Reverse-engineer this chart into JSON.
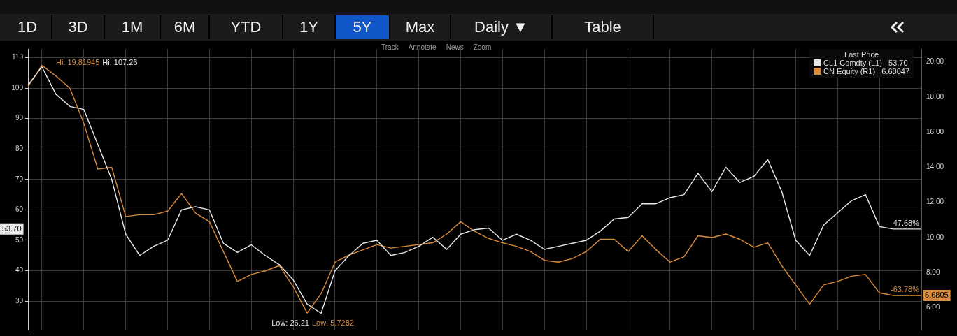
{
  "chart_data": {
    "type": "line",
    "legend_title": "Last Price",
    "legend": "top right",
    "grid": true,
    "marker": "none",
    "line_style": "solid",
    "categories": [
      null,
      null,
      null,
      null,
      null,
      null,
      null,
      null,
      null,
      null,
      null,
      null,
      null,
      null,
      null,
      null,
      null,
      null,
      null,
      null,
      null,
      null,
      null,
      null,
      null,
      null,
      null,
      null,
      null,
      null,
      null,
      null,
      null,
      null,
      null,
      null,
      null,
      null,
      null,
      null,
      null,
      null,
      null,
      null,
      null,
      null,
      null,
      null,
      null,
      null,
      null,
      null,
      null,
      null,
      null,
      null,
      null,
      null,
      null,
      null,
      null,
      null,
      null,
      null,
      null
    ],
    "series": [
      {
        "name": "CL1 Comdty (L1)   53.70",
        "color": "#e8e8e8",
        "values": [
          101,
          107,
          98,
          94,
          93,
          81.5,
          70,
          52,
          45,
          48,
          50,
          60,
          61,
          60,
          49,
          46,
          48.5,
          45,
          42,
          37,
          29,
          26,
          40,
          45,
          49,
          50,
          45,
          46,
          48,
          51,
          47,
          52,
          53.5,
          54,
          50,
          52,
          50,
          47,
          48,
          49,
          50,
          53,
          57,
          57.5,
          62,
          62,
          64,
          65,
          72,
          66,
          74,
          69,
          71,
          76.5,
          66,
          50,
          45,
          55,
          59,
          63,
          65,
          54.5,
          53.7,
          53.7,
          53.7
        ]
      },
      {
        "name": "CN Equity (R1)   6.68047",
        "color": "#d98a3a",
        "axis": "y2",
        "values": [
          18.6,
          19.8,
          19.2,
          18.5,
          16.5,
          13.9,
          14,
          11.2,
          11.3,
          11.3,
          11.5,
          12.5,
          11.4,
          10.9,
          9.2,
          7.5,
          7.9,
          8.1,
          8.4,
          7.2,
          5.7,
          6.8,
          8.6,
          9,
          9.3,
          9.6,
          9.4,
          9.5,
          9.6,
          9.7,
          10.2,
          10.9,
          10.35,
          9.95,
          9.7,
          9.5,
          9.2,
          8.7,
          8.6,
          8.8,
          9.2,
          9.9,
          9.9,
          9.2,
          10.1,
          9.3,
          8.6,
          8.9,
          10.1,
          10,
          10.2,
          9.9,
          9.45,
          9.7,
          8.4,
          7.3,
          6.2,
          7.3,
          7.5,
          7.8,
          7.9,
          6.85,
          6.7,
          6.7,
          6.7
        ]
      }
    ],
    "ylim": [
      20.6,
      112.9
    ],
    "yticks": [
      30,
      40,
      50,
      60,
      70,
      80,
      90,
      100,
      110
    ],
    "y2lim": [
      4.75,
      20.74
    ],
    "y2ticks": [
      {
        "value": 6,
        "label": "6.00"
      },
      {
        "value": 8,
        "label": "8.00"
      },
      {
        "value": 10,
        "label": "10.00"
      },
      {
        "value": 12,
        "label": "12.00"
      },
      {
        "value": 14,
        "label": "14.00"
      },
      {
        "value": 16,
        "label": "16.00"
      },
      {
        "value": 18,
        "label": "18.00"
      },
      {
        "value": 20,
        "label": "20.00"
      }
    ],
    "annotations": [
      "1D",
      "3D",
      "1M",
      "6M",
      "YTD",
      "1Y",
      "5Y",
      "Max",
      "Daily ▼",
      "Table",
      "Track",
      "Annotate",
      "News",
      "Zoom",
      "Hi: 19.81945",
      "Hi: 107.26",
      "Low: 26.21",
      "Low: 5.7282",
      "-47.68%",
      "-63.78%",
      "53.70",
      "6.6805"
    ]
  }
}
